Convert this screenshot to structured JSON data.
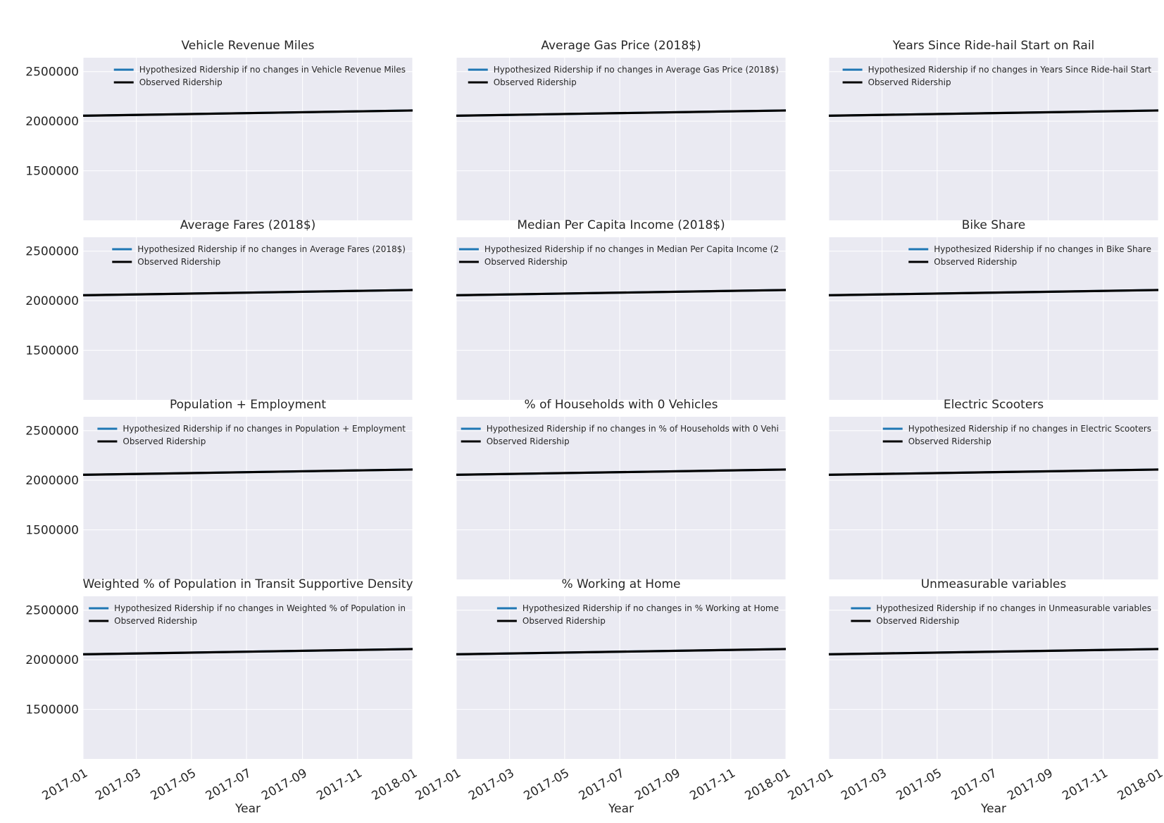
{
  "figure": {
    "xlabel": "Year",
    "ytick_values": [
      1500000,
      2000000,
      2500000
    ],
    "ylim": [
      1000000,
      2640000
    ],
    "xlim": [
      "2017-01-01",
      "2018-01-01"
    ],
    "xtick_labels": [
      "2017-01",
      "2017-03",
      "2017-05",
      "2017-07",
      "2017-09",
      "2017-11",
      "2018-01"
    ],
    "colors": {
      "hypothesized": "#1f77b4",
      "observed": "#000000",
      "axes_bg": "#eaeaf2",
      "grid": "#ffffff"
    }
  },
  "chart_data": [
    {
      "type": "line",
      "title": "Vehicle Revenue Miles",
      "xlabel": "",
      "ylabel": "",
      "series": [
        {
          "name": "Hypothesized Ridership if no changes in Vehicle Revenue Miles",
          "x": [
            "2017-01-01",
            "2018-01-01"
          ],
          "y": [
            2055000,
            2108000
          ]
        },
        {
          "name": "Observed Ridership",
          "x": [
            "2017-01-01",
            "2018-01-01"
          ],
          "y": [
            2055000,
            2108000
          ]
        }
      ]
    },
    {
      "type": "line",
      "title": "Average Gas Price (2018$)",
      "xlabel": "",
      "ylabel": "",
      "series": [
        {
          "name": "Hypothesized Ridership if no changes in Average Gas Price (2018$)",
          "x": [
            "2017-01-01",
            "2018-01-01"
          ],
          "y": [
            2055000,
            2108000
          ]
        },
        {
          "name": "Observed Ridership",
          "x": [
            "2017-01-01",
            "2018-01-01"
          ],
          "y": [
            2055000,
            2108000
          ]
        }
      ]
    },
    {
      "type": "line",
      "title": "Years Since Ride-hail Start on Rail",
      "xlabel": "",
      "ylabel": "",
      "series": [
        {
          "name": "Hypothesized Ridership if no changes in Years Since Ride-hail Start",
          "x": [
            "2017-01-01",
            "2018-01-01"
          ],
          "y": [
            2055000,
            2108000
          ]
        },
        {
          "name": "Observed Ridership",
          "x": [
            "2017-01-01",
            "2018-01-01"
          ],
          "y": [
            2055000,
            2108000
          ]
        }
      ]
    },
    {
      "type": "line",
      "title": "Average Fares (2018$)",
      "xlabel": "",
      "ylabel": "",
      "series": [
        {
          "name": "Hypothesized Ridership if no changes in Average Fares (2018$)",
          "x": [
            "2017-01-01",
            "2018-01-01"
          ],
          "y": [
            2055000,
            2108000
          ]
        },
        {
          "name": "Observed Ridership",
          "x": [
            "2017-01-01",
            "2018-01-01"
          ],
          "y": [
            2055000,
            2108000
          ]
        }
      ]
    },
    {
      "type": "line",
      "title": "Median Per Capita Income (2018$)",
      "xlabel": "",
      "ylabel": "",
      "series": [
        {
          "name": "Hypothesized Ridership if no changes in Median Per Capita Income (2",
          "x": [
            "2017-01-01",
            "2018-01-01"
          ],
          "y": [
            2055000,
            2108000
          ]
        },
        {
          "name": "Observed Ridership",
          "x": [
            "2017-01-01",
            "2018-01-01"
          ],
          "y": [
            2055000,
            2108000
          ]
        }
      ]
    },
    {
      "type": "line",
      "title": "Bike Share",
      "xlabel": "",
      "ylabel": "",
      "series": [
        {
          "name": "Hypothesized Ridership if no changes in Bike Share",
          "x": [
            "2017-01-01",
            "2018-01-01"
          ],
          "y": [
            2055000,
            2108000
          ]
        },
        {
          "name": "Observed Ridership",
          "x": [
            "2017-01-01",
            "2018-01-01"
          ],
          "y": [
            2055000,
            2108000
          ]
        }
      ]
    },
    {
      "type": "line",
      "title": "Population + Employment",
      "xlabel": "",
      "ylabel": "",
      "series": [
        {
          "name": "Hypothesized Ridership if no changes in Population + Employment",
          "x": [
            "2017-01-01",
            "2018-01-01"
          ],
          "y": [
            2055000,
            2108000
          ]
        },
        {
          "name": "Observed Ridership",
          "x": [
            "2017-01-01",
            "2018-01-01"
          ],
          "y": [
            2055000,
            2108000
          ]
        }
      ]
    },
    {
      "type": "line",
      "title": "% of Households with 0 Vehicles",
      "xlabel": "",
      "ylabel": "",
      "series": [
        {
          "name": "Hypothesized Ridership if no changes in % of Households with 0 Vehi",
          "x": [
            "2017-01-01",
            "2018-01-01"
          ],
          "y": [
            2055000,
            2108000
          ]
        },
        {
          "name": "Observed Ridership",
          "x": [
            "2017-01-01",
            "2018-01-01"
          ],
          "y": [
            2055000,
            2108000
          ]
        }
      ]
    },
    {
      "type": "line",
      "title": "Electric Scooters",
      "xlabel": "",
      "ylabel": "",
      "series": [
        {
          "name": "Hypothesized Ridership if no changes in Electric Scooters",
          "x": [
            "2017-01-01",
            "2018-01-01"
          ],
          "y": [
            2055000,
            2108000
          ]
        },
        {
          "name": "Observed Ridership",
          "x": [
            "2017-01-01",
            "2018-01-01"
          ],
          "y": [
            2055000,
            2108000
          ]
        }
      ]
    },
    {
      "type": "line",
      "title": "Weighted % of Population in Transit Supportive Density",
      "xlabel": "Year",
      "ylabel": "",
      "series": [
        {
          "name": "Hypothesized Ridership if no changes in Weighted % of Population in",
          "x": [
            "2017-01-01",
            "2018-01-01"
          ],
          "y": [
            2055000,
            2108000
          ]
        },
        {
          "name": "Observed Ridership",
          "x": [
            "2017-01-01",
            "2018-01-01"
          ],
          "y": [
            2055000,
            2108000
          ]
        }
      ]
    },
    {
      "type": "line",
      "title": "% Working at Home",
      "xlabel": "Year",
      "ylabel": "",
      "series": [
        {
          "name": "Hypothesized Ridership if no changes in % Working at Home",
          "x": [
            "2017-01-01",
            "2018-01-01"
          ],
          "y": [
            2055000,
            2108000
          ]
        },
        {
          "name": "Observed Ridership",
          "x": [
            "2017-01-01",
            "2018-01-01"
          ],
          "y": [
            2055000,
            2108000
          ]
        }
      ]
    },
    {
      "type": "line",
      "title": "Unmeasurable variables",
      "xlabel": "Year",
      "ylabel": "",
      "series": [
        {
          "name": "Hypothesized Ridership if no changes in Unmeasurable variables",
          "x": [
            "2017-01-01",
            "2018-01-01"
          ],
          "y": [
            2055000,
            2108000
          ]
        },
        {
          "name": "Observed Ridership",
          "x": [
            "2017-01-01",
            "2018-01-01"
          ],
          "y": [
            2055000,
            2108000
          ]
        }
      ]
    }
  ]
}
